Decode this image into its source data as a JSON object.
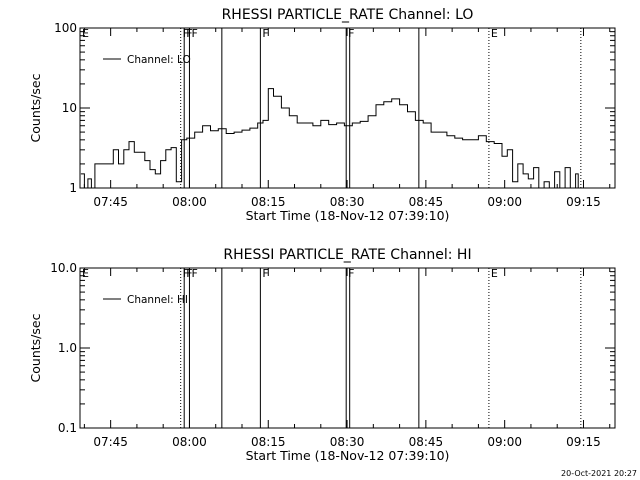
{
  "footer": {
    "timestamp": "20-Oct-2021 20:27"
  },
  "chart_data": [
    {
      "type": "line",
      "title": "RHESSI PARTICLE_RATE Channel: LO",
      "xlabel": "Start Time (18-Nov-12 07:39:10)",
      "ylabel": "Counts/sec",
      "y_scale": "log",
      "xlim": [
        "07:39:10",
        "09:21:00"
      ],
      "ylim": [
        1,
        100
      ],
      "x_tick_labels": [
        "07:45",
        "08:00",
        "08:15",
        "08:30",
        "08:45",
        "09:00",
        "09:15"
      ],
      "y_tick_labels": [
        "1",
        "10",
        "100"
      ],
      "legend": {
        "label": "Channel: LO",
        "placement": "top-left"
      },
      "flag_markers": [
        {
          "label": "E",
          "time": "07:39:10",
          "style": "dotted"
        },
        {
          "label": "F",
          "time": "07:58:20",
          "style": "dotted"
        },
        {
          "label": "F",
          "time": "07:59:00",
          "style": "solid"
        },
        {
          "label": "F",
          "time": "08:00:00",
          "style": "solid"
        },
        {
          "label": "",
          "time": "08:06:10",
          "style": "solid"
        },
        {
          "label": "F",
          "time": "08:13:30",
          "style": "solid"
        },
        {
          "label": "F",
          "time": "08:29:50",
          "style": "solid"
        },
        {
          "label": "",
          "time": "08:30:30",
          "style": "solid"
        },
        {
          "label": "",
          "time": "08:43:40",
          "style": "solid"
        },
        {
          "label": "E",
          "time": "08:57:00",
          "style": "dotted"
        },
        {
          "label": "",
          "time": "09:14:30",
          "style": "dotted"
        }
      ],
      "series": [
        {
          "x": [
            "07:39:20",
            "07:40:00",
            "07:40:40",
            "07:41:20",
            "07:42:00",
            "07:42:40",
            "07:43:30",
            "07:44:30",
            "07:45:30",
            "07:46:30",
            "07:47:30",
            "07:48:30",
            "07:49:30",
            "07:50:30",
            "07:51:30",
            "07:52:30",
            "07:53:30",
            "07:54:30",
            "07:55:30",
            "07:56:30",
            "07:57:30",
            "07:58:30",
            "07:59:30",
            "08:01:00",
            "08:02:30",
            "08:04:00",
            "08:05:30",
            "08:07:00",
            "08:08:30",
            "08:10:00",
            "08:11:30",
            "08:13:00",
            "08:14:00",
            "08:15:00",
            "08:16:00",
            "08:17:30",
            "08:19:00",
            "08:20:30",
            "08:22:00",
            "08:23:30",
            "08:25:00",
            "08:26:30",
            "08:28:00",
            "08:29:30",
            "08:31:00",
            "08:32:30",
            "08:34:00",
            "08:35:30",
            "08:37:00",
            "08:38:30",
            "08:40:00",
            "08:41:30",
            "08:43:00",
            "08:44:30",
            "08:46:00",
            "08:47:30",
            "08:49:00",
            "08:50:30",
            "08:52:00",
            "08:53:30",
            "08:55:00",
            "08:56:30",
            "08:58:00",
            "08:59:30",
            "09:00:30",
            "09:01:30",
            "09:02:30",
            "09:03:30",
            "09:04:30",
            "09:05:30",
            "09:06:30",
            "09:07:30",
            "09:08:30",
            "09:09:30",
            "09:10:30",
            "09:11:30",
            "09:12:30",
            "09:13:30",
            "09:14:00"
          ],
          "y": [
            1.5,
            1,
            1.3,
            1,
            2,
            2,
            2,
            2,
            3,
            2,
            3,
            3.8,
            2.8,
            2.8,
            2.2,
            1.7,
            1.5,
            2.2,
            3,
            3.2,
            1.2,
            4,
            4.2,
            5,
            6,
            5.2,
            5.5,
            4.8,
            5,
            5.3,
            5.6,
            6.5,
            7,
            17.5,
            14,
            10,
            8,
            6.5,
            6.5,
            6,
            7,
            6.2,
            6.5,
            6,
            6.5,
            6.8,
            8,
            11,
            12,
            13,
            11,
            9,
            7,
            6.5,
            5,
            5,
            4.5,
            4.2,
            4,
            4,
            4.5,
            3.8,
            3.6,
            2.5,
            3,
            1.2,
            2,
            1.5,
            1.3,
            1.8,
            1,
            1.2,
            1,
            1.6,
            1,
            1.8,
            1,
            1.5,
            1
          ]
        }
      ]
    },
    {
      "type": "line",
      "title": "RHESSI PARTICLE_RATE Channel: HI",
      "xlabel": "Start Time (18-Nov-12 07:39:10)",
      "ylabel": "Counts/sec",
      "y_scale": "log",
      "xlim": [
        "07:39:10",
        "09:21:00"
      ],
      "ylim": [
        0.1,
        10
      ],
      "x_tick_labels": [
        "07:45",
        "08:00",
        "08:15",
        "08:30",
        "08:45",
        "09:00",
        "09:15"
      ],
      "y_tick_labels": [
        "0.1",
        "1.0",
        "10.0"
      ],
      "legend": {
        "label": "Channel: HI",
        "placement": "top-left"
      },
      "flag_markers": [
        {
          "label": "E",
          "time": "07:39:10",
          "style": "dotted"
        },
        {
          "label": "F",
          "time": "07:58:20",
          "style": "dotted"
        },
        {
          "label": "F",
          "time": "07:59:00",
          "style": "solid"
        },
        {
          "label": "F",
          "time": "08:00:00",
          "style": "solid"
        },
        {
          "label": "",
          "time": "08:06:10",
          "style": "solid"
        },
        {
          "label": "F",
          "time": "08:13:30",
          "style": "solid"
        },
        {
          "label": "F",
          "time": "08:29:50",
          "style": "solid"
        },
        {
          "label": "",
          "time": "08:30:30",
          "style": "solid"
        },
        {
          "label": "",
          "time": "08:43:40",
          "style": "solid"
        },
        {
          "label": "E",
          "time": "08:57:00",
          "style": "dotted"
        },
        {
          "label": "",
          "time": "09:14:30",
          "style": "dotted"
        }
      ],
      "series": []
    }
  ]
}
